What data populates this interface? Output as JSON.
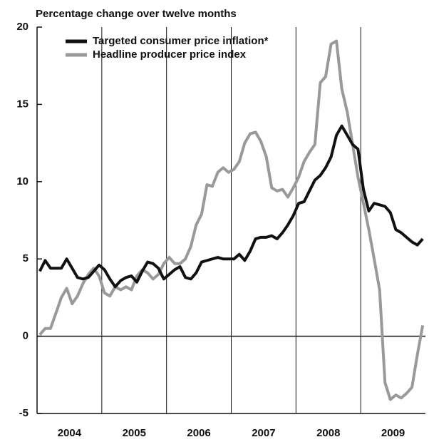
{
  "chart_data": {
    "type": "line",
    "title": "Percentage change over twelve months",
    "x": [
      2004.042,
      2004.125,
      2004.208,
      2004.292,
      2004.375,
      2004.458,
      2004.542,
      2004.625,
      2004.708,
      2004.792,
      2004.875,
      2004.958,
      2005.042,
      2005.125,
      2005.208,
      2005.292,
      2005.375,
      2005.458,
      2005.542,
      2005.625,
      2005.708,
      2005.792,
      2005.875,
      2005.958,
      2006.042,
      2006.125,
      2006.208,
      2006.292,
      2006.375,
      2006.458,
      2006.542,
      2006.625,
      2006.708,
      2006.792,
      2006.875,
      2006.958,
      2007.042,
      2007.125,
      2007.208,
      2007.292,
      2007.375,
      2007.458,
      2007.542,
      2007.625,
      2007.708,
      2007.792,
      2007.875,
      2007.958,
      2008.042,
      2008.125,
      2008.208,
      2008.292,
      2008.375,
      2008.458,
      2008.542,
      2008.625,
      2008.708,
      2008.792,
      2008.875,
      2008.958,
      2009.042,
      2009.125,
      2009.208,
      2009.292,
      2009.375,
      2009.458,
      2009.542,
      2009.625,
      2009.708,
      2009.792,
      2009.875,
      2009.958
    ],
    "series": [
      {
        "name": "Targeted consumer price inflation*",
        "color": "#111111",
        "values": [
          4.2,
          4.9,
          4.4,
          4.4,
          4.4,
          5.0,
          4.4,
          3.8,
          3.7,
          3.8,
          4.2,
          4.6,
          4.3,
          3.7,
          3.2,
          3.6,
          3.8,
          3.9,
          3.5,
          4.2,
          4.8,
          4.7,
          4.4,
          3.7,
          4.0,
          4.3,
          4.5,
          3.8,
          3.7,
          4.1,
          4.8,
          4.9,
          5.0,
          5.1,
          5.0,
          5.0,
          5.0,
          5.3,
          4.9,
          5.5,
          6.3,
          6.4,
          6.4,
          6.5,
          6.3,
          6.7,
          7.2,
          7.8,
          8.6,
          8.7,
          9.4,
          10.1,
          10.4,
          10.9,
          11.6,
          13.0,
          13.6,
          13.0,
          12.4,
          12.1,
          9.5,
          8.1,
          8.6,
          8.5,
          8.4,
          8.0,
          6.9,
          6.7,
          6.4,
          6.1,
          5.9,
          6.3
        ]
      },
      {
        "name": "Headline producer price index",
        "color": "#999999",
        "values": [
          0.1,
          0.5,
          0.5,
          1.5,
          2.5,
          3.1,
          2.1,
          2.6,
          3.4,
          4.0,
          4.4,
          3.9,
          2.8,
          2.6,
          3.2,
          3.0,
          3.2,
          3.0,
          3.9,
          4.3,
          4.1,
          3.7,
          4.0,
          4.7,
          5.1,
          4.7,
          4.7,
          5.0,
          5.8,
          7.2,
          7.9,
          9.8,
          9.7,
          10.6,
          10.9,
          10.6,
          10.8,
          11.3,
          12.5,
          13.1,
          13.2,
          12.6,
          11.6,
          9.6,
          9.4,
          9.5,
          9.0,
          9.6,
          10.3,
          11.3,
          11.9,
          12.4,
          16.4,
          16.8,
          18.9,
          19.1,
          16.0,
          14.5,
          12.4,
          10.3,
          8.6,
          6.9,
          5.0,
          3.0,
          -3.0,
          -4.1,
          -3.8,
          -4.0,
          -3.7,
          -3.3,
          -1.2,
          0.7
        ]
      }
    ],
    "xlim": [
      2004,
      2010
    ],
    "xticks": [
      {
        "value": 2004.5,
        "label": "2004"
      },
      {
        "value": 2005.5,
        "label": "2005"
      },
      {
        "value": 2006.5,
        "label": "2006"
      },
      {
        "value": 2007.5,
        "label": "2007"
      },
      {
        "value": 2008.5,
        "label": "2008"
      },
      {
        "value": 2009.5,
        "label": "2009"
      }
    ],
    "xgrid": [
      2005,
      2006,
      2007,
      2008,
      2009
    ],
    "ylim": [
      -5,
      20
    ],
    "yticks": [
      -5,
      0,
      5,
      10,
      15,
      20
    ],
    "legend": "upper left"
  }
}
